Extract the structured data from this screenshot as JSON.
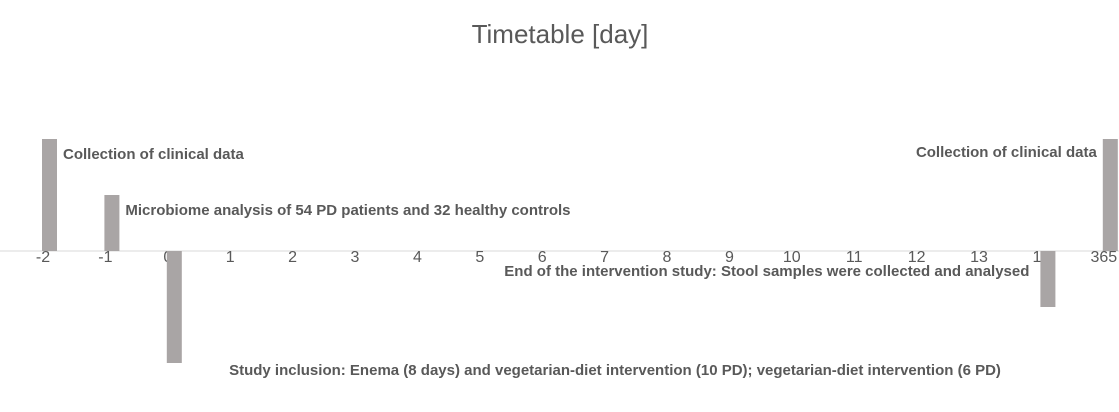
{
  "chart_data": {
    "type": "timeline",
    "title": "Timetable [day]",
    "categories": [
      "-2",
      "-1",
      "0",
      "1",
      "2",
      "3",
      "4",
      "5",
      "6",
      "7",
      "8",
      "9",
      "10",
      "11",
      "12",
      "13",
      "14",
      "365"
    ],
    "values": [
      2,
      1,
      -2,
      null,
      null,
      null,
      null,
      null,
      null,
      null,
      null,
      null,
      null,
      null,
      null,
      null,
      -1,
      2
    ],
    "bar_labels": [
      "Collection of clinical data",
      "Microbiome analysis of 54 PD patients and 32 healthy controls",
      "Study inclusion: Enema (8 days) and vegetarian-diet intervention (10 PD); vegetarian-diet intervention (6 PD)",
      null,
      null,
      null,
      null,
      null,
      null,
      null,
      null,
      null,
      null,
      null,
      null,
      null,
      "End of the intervention study: Stool samples were collected and analysed",
      "Collection of clinical data"
    ],
    "color": "#a9a5a5"
  }
}
